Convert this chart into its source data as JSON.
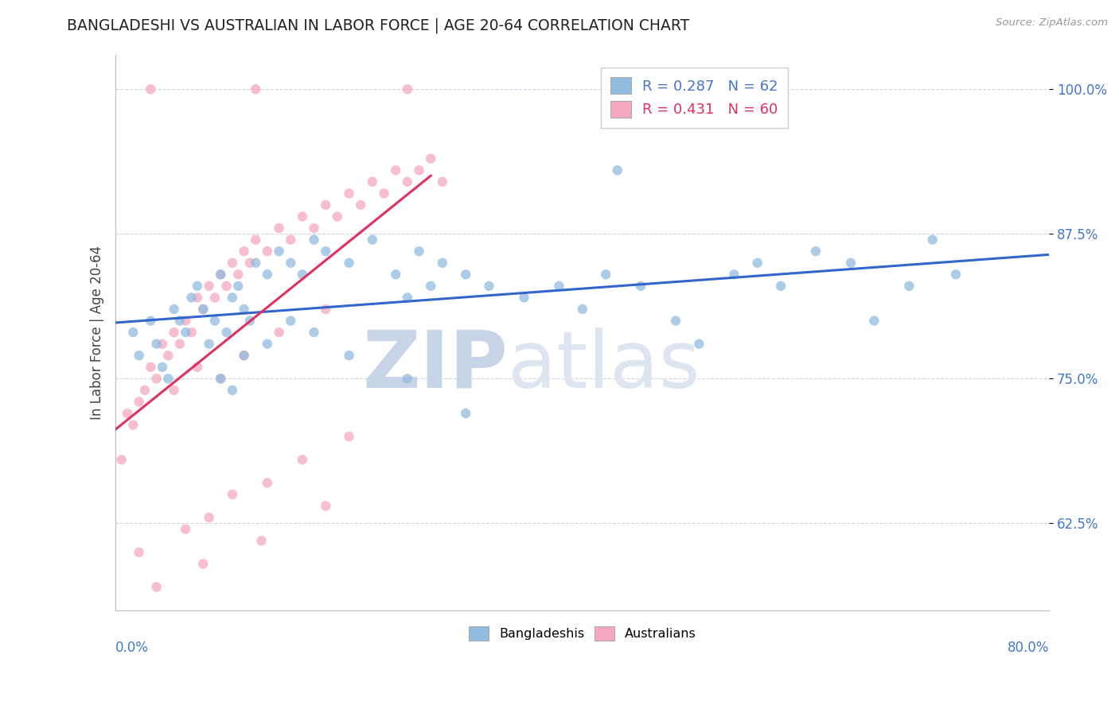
{
  "title": "BANGLADESHI VS AUSTRALIAN IN LABOR FORCE | AGE 20-64 CORRELATION CHART",
  "source": "Source: ZipAtlas.com",
  "xlabel_bottom_left": "0.0%",
  "xlabel_bottom_right": "80.0%",
  "ylabel": "In Labor Force | Age 20-64",
  "ylabel_ticks": [
    62.5,
    75.0,
    87.5,
    100.0
  ],
  "ylabel_tick_labels": [
    "62.5%",
    "75.0%",
    "87.5%",
    "100.0%"
  ],
  "xmin": 0.0,
  "xmax": 80.0,
  "ymin": 55.0,
  "ymax": 103.0,
  "blue_scatter_color": "#90bce0",
  "pink_scatter_color": "#f4a8be",
  "blue_line_color": "#3366cc",
  "pink_line_color": "#e03060",
  "legend_label_blue": "R = 0.287   N = 62",
  "legend_label_pink": "R = 0.431   N = 60",
  "legend_color_blue": "#4477cc",
  "legend_color_pink": "#e03060",
  "watermark": "ZIPatlas",
  "watermark_color": "#ccd8ea",
  "grid_color": "#c8d0e0",
  "bottom_legend_labels": [
    "Bangladeshis",
    "Australians"
  ],
  "blue_x": [
    1.5,
    2.0,
    3.0,
    3.5,
    4.0,
    4.5,
    5.0,
    5.5,
    6.0,
    6.5,
    7.0,
    7.5,
    8.0,
    8.5,
    9.0,
    9.5,
    10.0,
    10.5,
    11.0,
    11.5,
    12.0,
    13.0,
    14.0,
    15.0,
    16.0,
    17.0,
    18.0,
    20.0,
    22.0,
    24.0,
    25.0,
    26.0,
    27.0,
    28.0,
    30.0,
    32.0,
    35.0,
    38.0,
    40.0,
    42.0,
    45.0,
    48.0,
    50.0,
    53.0,
    55.0,
    57.0,
    60.0,
    63.0,
    65.0,
    68.0,
    70.0,
    72.0,
    9.0,
    10.0,
    11.0,
    13.0,
    15.0,
    17.0,
    20.0,
    25.0,
    30.0,
    43.0
  ],
  "blue_y": [
    79,
    77,
    80,
    78,
    76,
    75,
    81,
    80,
    79,
    82,
    83,
    81,
    78,
    80,
    84,
    79,
    82,
    83,
    81,
    80,
    85,
    84,
    86,
    85,
    84,
    87,
    86,
    85,
    87,
    84,
    82,
    86,
    83,
    85,
    84,
    83,
    82,
    83,
    81,
    84,
    83,
    80,
    78,
    84,
    85,
    83,
    86,
    85,
    80,
    83,
    87,
    84,
    75,
    74,
    77,
    78,
    80,
    79,
    77,
    75,
    72,
    93
  ],
  "pink_x": [
    0.5,
    1.0,
    1.5,
    2.0,
    2.5,
    3.0,
    3.5,
    4.0,
    4.5,
    5.0,
    5.5,
    6.0,
    6.5,
    7.0,
    7.5,
    8.0,
    8.5,
    9.0,
    9.5,
    10.0,
    10.5,
    11.0,
    11.5,
    12.0,
    13.0,
    14.0,
    15.0,
    16.0,
    17.0,
    18.0,
    19.0,
    20.0,
    21.0,
    22.0,
    23.0,
    24.0,
    25.0,
    26.0,
    27.0,
    28.0,
    3.0,
    12.0,
    25.0,
    2.0,
    6.0,
    8.0,
    10.0,
    13.0,
    16.0,
    20.0,
    5.0,
    7.0,
    9.0,
    11.0,
    14.0,
    18.0,
    3.5,
    7.5,
    12.5,
    18.0
  ],
  "pink_y": [
    68,
    72,
    71,
    73,
    74,
    76,
    75,
    78,
    77,
    79,
    78,
    80,
    79,
    82,
    81,
    83,
    82,
    84,
    83,
    85,
    84,
    86,
    85,
    87,
    86,
    88,
    87,
    89,
    88,
    90,
    89,
    91,
    90,
    92,
    91,
    93,
    92,
    93,
    94,
    92,
    100,
    100,
    100,
    60,
    62,
    63,
    65,
    66,
    68,
    70,
    74,
    76,
    75,
    77,
    79,
    81,
    57,
    59,
    61,
    64
  ]
}
